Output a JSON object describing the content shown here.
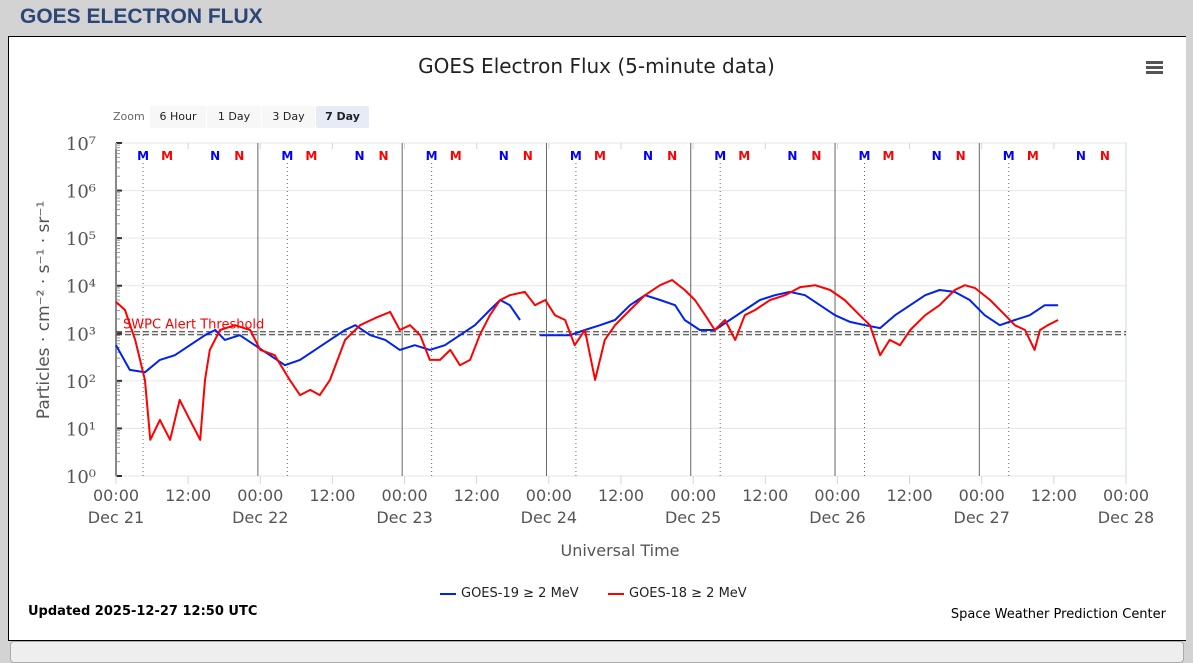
{
  "header": {
    "title": "GOES ELECTRON FLUX"
  },
  "chart": {
    "menu_icon": "hamburger-icon",
    "zoom_label": "Zoom",
    "zoom_buttons": [
      {
        "label": "6 Hour",
        "active": false
      },
      {
        "label": "1 Day",
        "active": false
      },
      {
        "label": "3 Day",
        "active": false
      },
      {
        "label": "7 Day",
        "active": true
      }
    ],
    "updated": "Updated 2025-12-27 12:50 UTC",
    "credit": "Space Weather Prediction Center"
  },
  "chart_data": {
    "type": "line",
    "title": "GOES Electron Flux (5-minute data)",
    "xlabel": "Universal Time",
    "ylabel": "Particles · cm⁻² · s⁻¹ · sr⁻¹",
    "y_scale": "log",
    "ylim_log10": [
      0,
      7
    ],
    "y_ticks": [
      "10⁰",
      "10¹",
      "10²",
      "10³",
      "10⁴",
      "10⁵",
      "10⁶",
      "10⁷"
    ],
    "x_units": "hours since 2025-12-21 00:00 UTC",
    "xlim": [
      0,
      168
    ],
    "x_ticks": [
      {
        "time": "00:00",
        "date": "Dec 21"
      },
      {
        "time": "12:00",
        "date": ""
      },
      {
        "time": "00:00",
        "date": "Dec 22"
      },
      {
        "time": "12:00",
        "date": ""
      },
      {
        "time": "00:00",
        "date": "Dec 23"
      },
      {
        "time": "12:00",
        "date": ""
      },
      {
        "time": "00:00",
        "date": "Dec 24"
      },
      {
        "time": "12:00",
        "date": ""
      },
      {
        "time": "00:00",
        "date": "Dec 25"
      },
      {
        "time": "12:00",
        "date": ""
      },
      {
        "time": "00:00",
        "date": "Dec 26"
      },
      {
        "time": "12:00",
        "date": ""
      },
      {
        "time": "00:00",
        "date": "Dec 27"
      },
      {
        "time": "12:00",
        "date": ""
      },
      {
        "time": "00:00",
        "date": "Dec 28"
      }
    ],
    "grid": true,
    "legend_position": "bottom-center",
    "threshold": {
      "label": "SWPC Alert Threshold",
      "value": 1000,
      "color": "#ff0000"
    },
    "daily_markers": [
      {
        "label": "M",
        "hour": 4.5,
        "color": "#0000ff",
        "dotted_line": true
      },
      {
        "label": "M",
        "hour": 8.5,
        "color": "#ff0000",
        "dotted_line": false
      },
      {
        "label": "N",
        "hour": 16.5,
        "color": "#0000ff",
        "dotted_line": false
      },
      {
        "label": "N",
        "hour": 20.5,
        "color": "#ff0000",
        "dotted_line": false
      }
    ],
    "day_lines_hour_offset": 23.6,
    "series": [
      {
        "name": "GOES-19 ≥ 2 MeV",
        "color": "#0022ee",
        "x": [
          0,
          2.3,
          4.8,
          7.3,
          9.8,
          12.3,
          14.8,
          16.5,
          18.1,
          20.6,
          23.1,
          25.6,
          28.1,
          30.6,
          33.1,
          35.6,
          38.1,
          39.8,
          42.3,
          44.8,
          47.2,
          49.7,
          52.2,
          54.7,
          57.2,
          59.7,
          62.2,
          63.9,
          65.5,
          67.2,
          null,
          70.5,
          73.0,
          75.5,
          78.0,
          80.5,
          83.0,
          85.5,
          88.0,
          90.5,
          93.0,
          94.6,
          97.1,
          99.6,
          102.1,
          104.6,
          107.1,
          109.6,
          112.1,
          114.6,
          117.1,
          119.6,
          122.1,
          124.6,
          127.1,
          129.6,
          132.1,
          134.6,
          137.0,
          139.5,
          142.0,
          144.5,
          147.0,
          149.5,
          152.0,
          154.5,
          156.7
        ],
        "log10_y": [
          2.75,
          2.23,
          2.18,
          2.44,
          2.54,
          2.75,
          2.96,
          3.07,
          2.86,
          2.96,
          2.75,
          2.54,
          2.33,
          2.44,
          2.65,
          2.86,
          3.07,
          3.17,
          2.96,
          2.86,
          2.65,
          2.75,
          2.65,
          2.75,
          2.96,
          3.17,
          3.49,
          3.7,
          3.59,
          3.28,
          null,
          2.96,
          2.96,
          2.96,
          3.07,
          3.17,
          3.28,
          3.59,
          3.8,
          3.7,
          3.59,
          3.28,
          3.07,
          3.07,
          3.28,
          3.49,
          3.7,
          3.8,
          3.87,
          3.8,
          3.59,
          3.38,
          3.24,
          3.17,
          3.11,
          3.38,
          3.59,
          3.8,
          3.91,
          3.87,
          3.7,
          3.38,
          3.17,
          3.28,
          3.38,
          3.59,
          3.59
        ]
      },
      {
        "name": "GOES-18 ≥ 2 MeV",
        "color": "#ff0000",
        "x": [
          0,
          1.5,
          3.2,
          4.8,
          5.7,
          7.3,
          9.0,
          10.6,
          12.3,
          14.0,
          14.8,
          15.6,
          17.3,
          19.8,
          22.3,
          24.0,
          26.4,
          28.9,
          30.6,
          32.3,
          33.9,
          35.6,
          38.1,
          40.6,
          43.1,
          45.6,
          47.2,
          48.9,
          50.6,
          52.2,
          53.9,
          55.6,
          57.2,
          58.9,
          60.5,
          62.2,
          63.9,
          65.5,
          68.0,
          69.7,
          71.4,
          73.0,
          74.7,
          76.3,
          78.0,
          79.7,
          81.3,
          83.0,
          85.5,
          88.0,
          90.5,
          92.5,
          94.6,
          96.3,
          98.0,
          99.6,
          101.3,
          103.0,
          104.6,
          106.3,
          108.8,
          111.3,
          113.8,
          116.3,
          118.8,
          121.2,
          123.7,
          125.4,
          127.1,
          128.7,
          130.4,
          132.1,
          134.6,
          137.0,
          139.5,
          141.2,
          142.9,
          145.4,
          147.9,
          149.5,
          151.2,
          152.8,
          153.7,
          155.0,
          156.7
        ],
        "log10_y": [
          3.66,
          3.49,
          2.86,
          2.02,
          0.76,
          1.18,
          0.76,
          1.6,
          1.18,
          0.76,
          2.02,
          2.65,
          3.07,
          3.17,
          3.07,
          2.65,
          2.54,
          2.02,
          1.7,
          1.81,
          1.7,
          2.02,
          2.86,
          3.17,
          3.32,
          3.45,
          3.07,
          3.17,
          2.96,
          2.44,
          2.44,
          2.65,
          2.33,
          2.44,
          2.96,
          3.38,
          3.7,
          3.8,
          3.87,
          3.59,
          3.7,
          3.38,
          3.28,
          2.75,
          3.07,
          2.02,
          2.86,
          3.17,
          3.49,
          3.8,
          4.01,
          4.12,
          3.91,
          3.7,
          3.38,
          3.07,
          3.28,
          2.86,
          3.38,
          3.49,
          3.7,
          3.8,
          3.97,
          4.01,
          3.91,
          3.7,
          3.38,
          3.17,
          2.54,
          2.86,
          2.75,
          3.07,
          3.38,
          3.59,
          3.91,
          4.01,
          3.95,
          3.7,
          3.38,
          3.17,
          3.07,
          2.65,
          3.07,
          3.17,
          3.28
        ]
      }
    ]
  }
}
